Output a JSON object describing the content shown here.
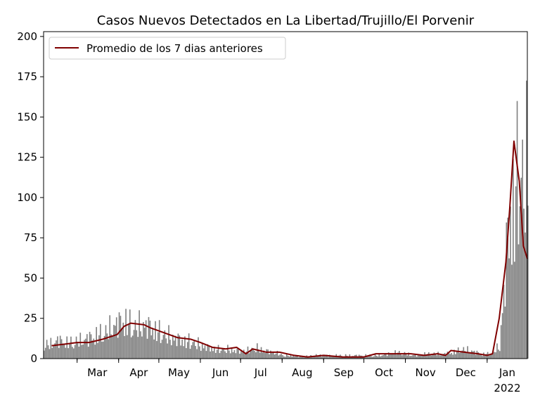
{
  "chart_data": {
    "type": "bar",
    "title": "Casos Nuevos Detectados en La Libertad/Trujillo/El Porvenir",
    "xlabel": "",
    "ylabel": "",
    "ylim": [
      0,
      203
    ],
    "xlim": [
      "2021-02-04",
      "2022-01-31"
    ],
    "grid": false,
    "legend_position": "top-left",
    "x_ticks": [
      {
        "date": "2021-03-01",
        "label": "Mar"
      },
      {
        "date": "2021-04-01",
        "label": "Apr"
      },
      {
        "date": "2021-05-01",
        "label": "May"
      },
      {
        "date": "2021-06-01",
        "label": "Jun"
      },
      {
        "date": "2021-07-01",
        "label": "Jul"
      },
      {
        "date": "2021-08-01",
        "label": "Aug"
      },
      {
        "date": "2021-09-01",
        "label": "Sep"
      },
      {
        "date": "2021-10-01",
        "label": "Oct"
      },
      {
        "date": "2021-11-01",
        "label": "Nov"
      },
      {
        "date": "2021-12-01",
        "label": "Dec"
      },
      {
        "date": "2022-01-01",
        "label": "Jan",
        "sublabel": "2022"
      }
    ],
    "y_ticks": [
      0,
      25,
      50,
      75,
      100,
      125,
      150,
      175,
      200
    ],
    "colors": {
      "bars": "#808080",
      "avg_line": "#800000"
    },
    "series": [
      {
        "type": "bar",
        "dates": [
          "2021-02-08",
          "2021-02-15",
          "2021-02-22",
          "2021-03-01",
          "2021-03-08",
          "2021-03-15",
          "2021-03-22",
          "2021-03-29",
          "2021-04-05",
          "2021-04-12",
          "2021-04-19",
          "2021-04-26",
          "2021-05-03",
          "2021-05-10",
          "2021-05-17",
          "2021-05-24",
          "2021-05-31",
          "2021-06-07",
          "2021-06-14",
          "2021-06-21",
          "2021-06-28",
          "2021-07-05",
          "2021-07-12",
          "2021-07-19",
          "2021-07-26",
          "2021-08-02",
          "2021-08-09",
          "2021-08-16",
          "2021-08-23",
          "2021-08-30",
          "2021-09-06",
          "2021-09-13",
          "2021-09-20",
          "2021-09-27",
          "2021-10-04",
          "2021-10-11",
          "2021-10-18",
          "2021-10-25",
          "2021-11-01",
          "2021-11-08",
          "2021-11-15",
          "2021-11-22",
          "2021-11-29",
          "2021-12-06",
          "2021-12-13",
          "2021-12-20",
          "2021-12-27",
          "2022-01-03",
          "2022-01-10",
          "2022-01-17",
          "2022-01-24"
        ],
        "values": [
          9,
          12,
          10,
          11,
          13,
          15,
          17,
          22,
          25,
          20,
          22,
          20,
          16,
          14,
          12,
          11,
          9,
          7,
          6,
          6,
          5,
          5,
          7,
          5,
          4,
          2,
          2,
          1,
          2,
          2,
          2,
          2,
          2,
          2,
          2,
          2,
          3,
          4,
          3,
          2,
          3,
          3,
          3,
          4,
          6,
          5,
          3,
          3,
          8,
          90,
          120
        ]
      },
      {
        "type": "line",
        "name": "Promedio de los 7 dias anteriores",
        "dates": [
          "2021-02-10",
          "2021-02-20",
          "2021-03-01",
          "2021-03-10",
          "2021-03-20",
          "2021-03-31",
          "2021-04-05",
          "2021-04-10",
          "2021-04-20",
          "2021-04-25",
          "2021-05-05",
          "2021-05-15",
          "2021-05-25",
          "2021-06-01",
          "2021-06-10",
          "2021-06-20",
          "2021-06-28",
          "2021-07-05",
          "2021-07-10",
          "2021-07-20",
          "2021-07-30",
          "2021-08-10",
          "2021-08-20",
          "2021-09-01",
          "2021-09-15",
          "2021-10-01",
          "2021-10-10",
          "2021-10-25",
          "2021-11-05",
          "2021-11-15",
          "2021-11-25",
          "2021-12-01",
          "2021-12-05",
          "2021-12-15",
          "2021-12-25",
          "2022-01-01",
          "2022-01-05",
          "2022-01-10",
          "2022-01-15",
          "2022-01-18",
          "2022-01-21",
          "2022-01-25",
          "2022-01-28",
          "2022-01-31"
        ],
        "values": [
          8,
          9,
          10,
          10,
          12,
          15,
          20,
          22,
          21,
          19,
          16,
          13,
          12,
          10,
          7,
          6,
          7,
          3,
          6,
          4,
          4,
          2,
          1,
          2,
          1,
          1,
          3,
          3,
          3,
          2,
          3,
          2,
          5,
          4,
          3,
          2,
          3,
          25,
          60,
          95,
          135,
          110,
          70,
          62
        ]
      }
    ]
  }
}
